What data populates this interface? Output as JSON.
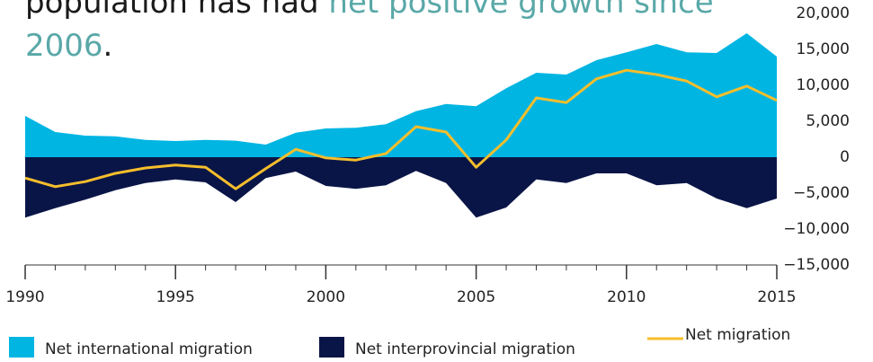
{
  "chart_data": {
    "type": "area-line",
    "title_parts": [
      "population has had ",
      "net positive growth since",
      "2006",
      "."
    ],
    "x": [
      1990,
      1991,
      1992,
      1993,
      1994,
      1995,
      1996,
      1997,
      1998,
      1999,
      2000,
      2001,
      2002,
      2003,
      2004,
      2005,
      2006,
      2007,
      2008,
      2009,
      2010,
      2011,
      2012,
      2013,
      2014,
      2015
    ],
    "series": [
      {
        "name": "Net international migration",
        "color": "#00b5e2",
        "kind": "area",
        "values": [
          5750,
          3500,
          3000,
          2900,
          2400,
          2250,
          2400,
          2300,
          1750,
          3400,
          4000,
          4100,
          4600,
          6400,
          7400,
          7100,
          9600,
          11750,
          11500,
          13500,
          14600,
          15750,
          14600,
          14500,
          17250,
          14000
        ]
      },
      {
        "name": "Net interprovincial migration",
        "color": "#0a1547",
        "kind": "area",
        "values": [
          -8400,
          -7100,
          -5900,
          -4600,
          -3600,
          -3100,
          -3500,
          -6250,
          -2900,
          -2000,
          -4000,
          -4400,
          -3900,
          -1900,
          -3600,
          -8400,
          -7000,
          -3100,
          -3600,
          -2250,
          -2250,
          -3900,
          -3600,
          -5750,
          -7100,
          -5750
        ]
      },
      {
        "name": "Net migration",
        "color": "#f6be2c",
        "kind": "line",
        "values": [
          -2900,
          -4100,
          -3400,
          -2250,
          -1500,
          -1100,
          -1400,
          -4400,
          -1600,
          1100,
          -100,
          -400,
          500,
          4250,
          3500,
          -1400,
          2400,
          8250,
          7600,
          10900,
          12100,
          11500,
          10600,
          8400,
          9900,
          7900
        ]
      }
    ],
    "xlim": [
      1990,
      2015
    ],
    "xticks": [
      1990,
      1995,
      2000,
      2005,
      2010,
      2015
    ],
    "ylim": [
      -15000,
      20000
    ],
    "yticks": [
      {
        "value": -15000,
        "label": "−15,000"
      },
      {
        "value": -10000,
        "label": "−10,000"
      },
      {
        "value": -5000,
        "label": "−5,000"
      },
      0,
      {
        "value": 5000,
        "label": "5,000"
      },
      {
        "value": 10000,
        "label": "10,000"
      },
      {
        "value": 15000,
        "label": "15,000"
      },
      {
        "value": 20000,
        "label": "20,000"
      }
    ]
  }
}
